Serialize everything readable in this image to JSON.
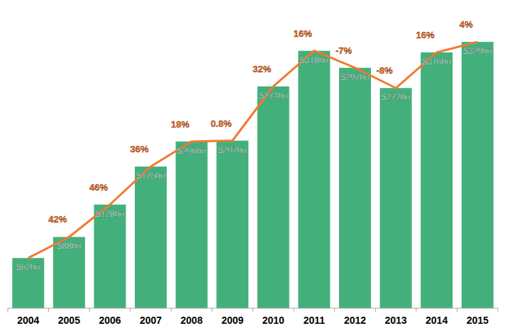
{
  "chart_data": {
    "type": "bar",
    "categories": [
      "2004",
      "2005",
      "2006",
      "2007",
      "2008",
      "2009",
      "2010",
      "2011",
      "2012",
      "2013",
      "2014",
      "2015"
    ],
    "ylim": [
      0,
      330
    ],
    "tick_labels": "x",
    "grid": false,
    "data_labels": true,
    "series": [
      {
        "type": "bar",
        "color": "#43b07c",
        "values": [
          62,
          88,
          128,
          175,
          206,
          207,
          274,
          318,
          297,
          272,
          316,
          329
        ],
        "value_labels": [
          "$62bn",
          "$88bn",
          "$128bn",
          "$175bn",
          "$206bn",
          "$207bn",
          "$274bn",
          "$318bn",
          "$297bn",
          "$272bn",
          "$316bn",
          "$329bn"
        ]
      },
      {
        "type": "line",
        "color": "#f07a30",
        "values": [
          62,
          88,
          128,
          175,
          206,
          207,
          274,
          318,
          297,
          272,
          316,
          329
        ],
        "growth": [
          null,
          42,
          46,
          36,
          18,
          0.8,
          32,
          16,
          -7,
          -8,
          16,
          4
        ],
        "growth_labels": [
          null,
          "42%",
          "46%",
          "36%",
          "18%",
          "0.8%",
          "32%",
          "16%",
          "-7%",
          "-8%",
          "16%",
          "4%"
        ]
      }
    ]
  }
}
